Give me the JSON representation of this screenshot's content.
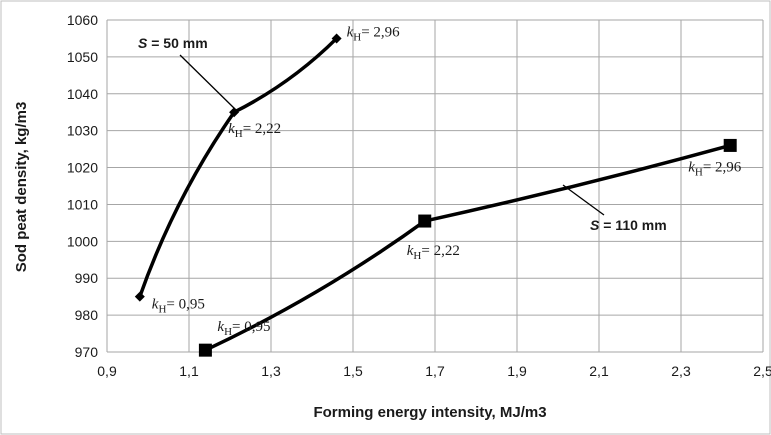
{
  "chart_data": {
    "type": "line",
    "xlabel": "Forming energy intensity, MJ/m3",
    "ylabel": "Sod peat density, kg/m3",
    "xlim": [
      0.9,
      2.5
    ],
    "ylim": [
      970,
      1060
    ],
    "x_ticks": [
      "0,9",
      "1,1",
      "1,3",
      "1,5",
      "1,7",
      "1,9",
      "2,1",
      "2,3",
      "2,5"
    ],
    "y_ticks": [
      "970",
      "980",
      "990",
      "1000",
      "1010",
      "1020",
      "1030",
      "1040",
      "1050",
      "1060"
    ],
    "grid": true,
    "series": [
      {
        "name": "S = 50 mm",
        "marker": "diamond",
        "color": "#000000",
        "points": [
          {
            "x": 0.98,
            "y": 985,
            "label": "0,95"
          },
          {
            "x": 1.21,
            "y": 1035,
            "label": "2,22"
          },
          {
            "x": 1.46,
            "y": 1055,
            "label": "2,96"
          }
        ]
      },
      {
        "name": "S = 110 mm",
        "marker": "square",
        "color": "#000000",
        "points": [
          {
            "x": 1.14,
            "y": 970.5,
            "label": "0,95"
          },
          {
            "x": 1.675,
            "y": 1005.5,
            "label": "2,22"
          },
          {
            "x": 2.42,
            "y": 1026,
            "label": "2,96"
          }
        ]
      }
    ],
    "annotations": {
      "k_symbol": "k",
      "k_subscript": "H",
      "equals": "= ",
      "s_prefix": "S",
      "s50_rest": " = 50 mm",
      "s110_rest": " = 110 mm"
    },
    "colors": {
      "grid": "#a6a6a6",
      "frame": "#bfbfbf",
      "line": "#000000"
    }
  }
}
